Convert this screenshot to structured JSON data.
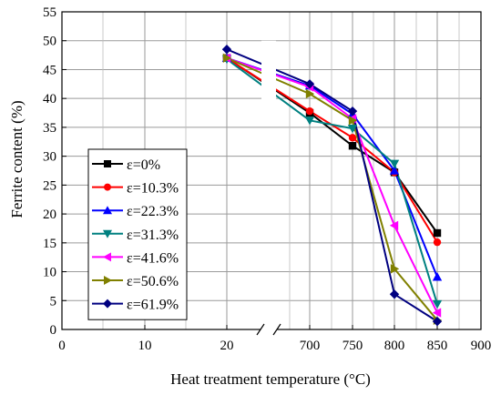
{
  "chart_data": {
    "type": "line",
    "xlabel": "Heat treatment temperature (°C)",
    "ylabel": "Ferrite content (%)",
    "ylim": [
      0,
      55
    ],
    "y_ticks": [
      0,
      5,
      10,
      15,
      20,
      25,
      30,
      35,
      40,
      45,
      50,
      55
    ],
    "x_tick_labels": [
      "0",
      "10",
      "20",
      "700",
      "750",
      "800",
      "850",
      "900"
    ],
    "x_axis_break": "between 20 and 700",
    "grid": true,
    "legend_position": "left-center",
    "x": [
      20,
      700,
      750,
      800,
      850
    ],
    "series": [
      {
        "name": "ε=0%",
        "color": "#000000",
        "marker": "square",
        "values": [
          47.0,
          37.5,
          31.8,
          27.2,
          16.7
        ]
      },
      {
        "name": "ε=10.3%",
        "color": "#ff0000",
        "marker": "circle",
        "values": [
          47.0,
          37.8,
          33.2,
          27.2,
          15.1
        ]
      },
      {
        "name": "ε=22.3%",
        "color": "#0000ff",
        "marker": "triangle-up",
        "values": [
          47.0,
          42.2,
          37.3,
          27.5,
          9.1
        ]
      },
      {
        "name": "ε=31.3%",
        "color": "#008080",
        "marker": "triangle-down",
        "values": [
          46.8,
          36.2,
          34.8,
          28.7,
          4.4
        ]
      },
      {
        "name": "ε=41.6%",
        "color": "#ff00ff",
        "marker": "triangle-left",
        "values": [
          47.0,
          42.0,
          36.5,
          18.0,
          2.9
        ]
      },
      {
        "name": "ε=50.6%",
        "color": "#808000",
        "marker": "triangle-right",
        "values": [
          47.0,
          40.8,
          36.2,
          10.5,
          1.6
        ]
      },
      {
        "name": "ε=61.9%",
        "color": "#000080",
        "marker": "diamond",
        "values": [
          48.5,
          42.5,
          37.8,
          6.1,
          1.4
        ]
      }
    ]
  }
}
